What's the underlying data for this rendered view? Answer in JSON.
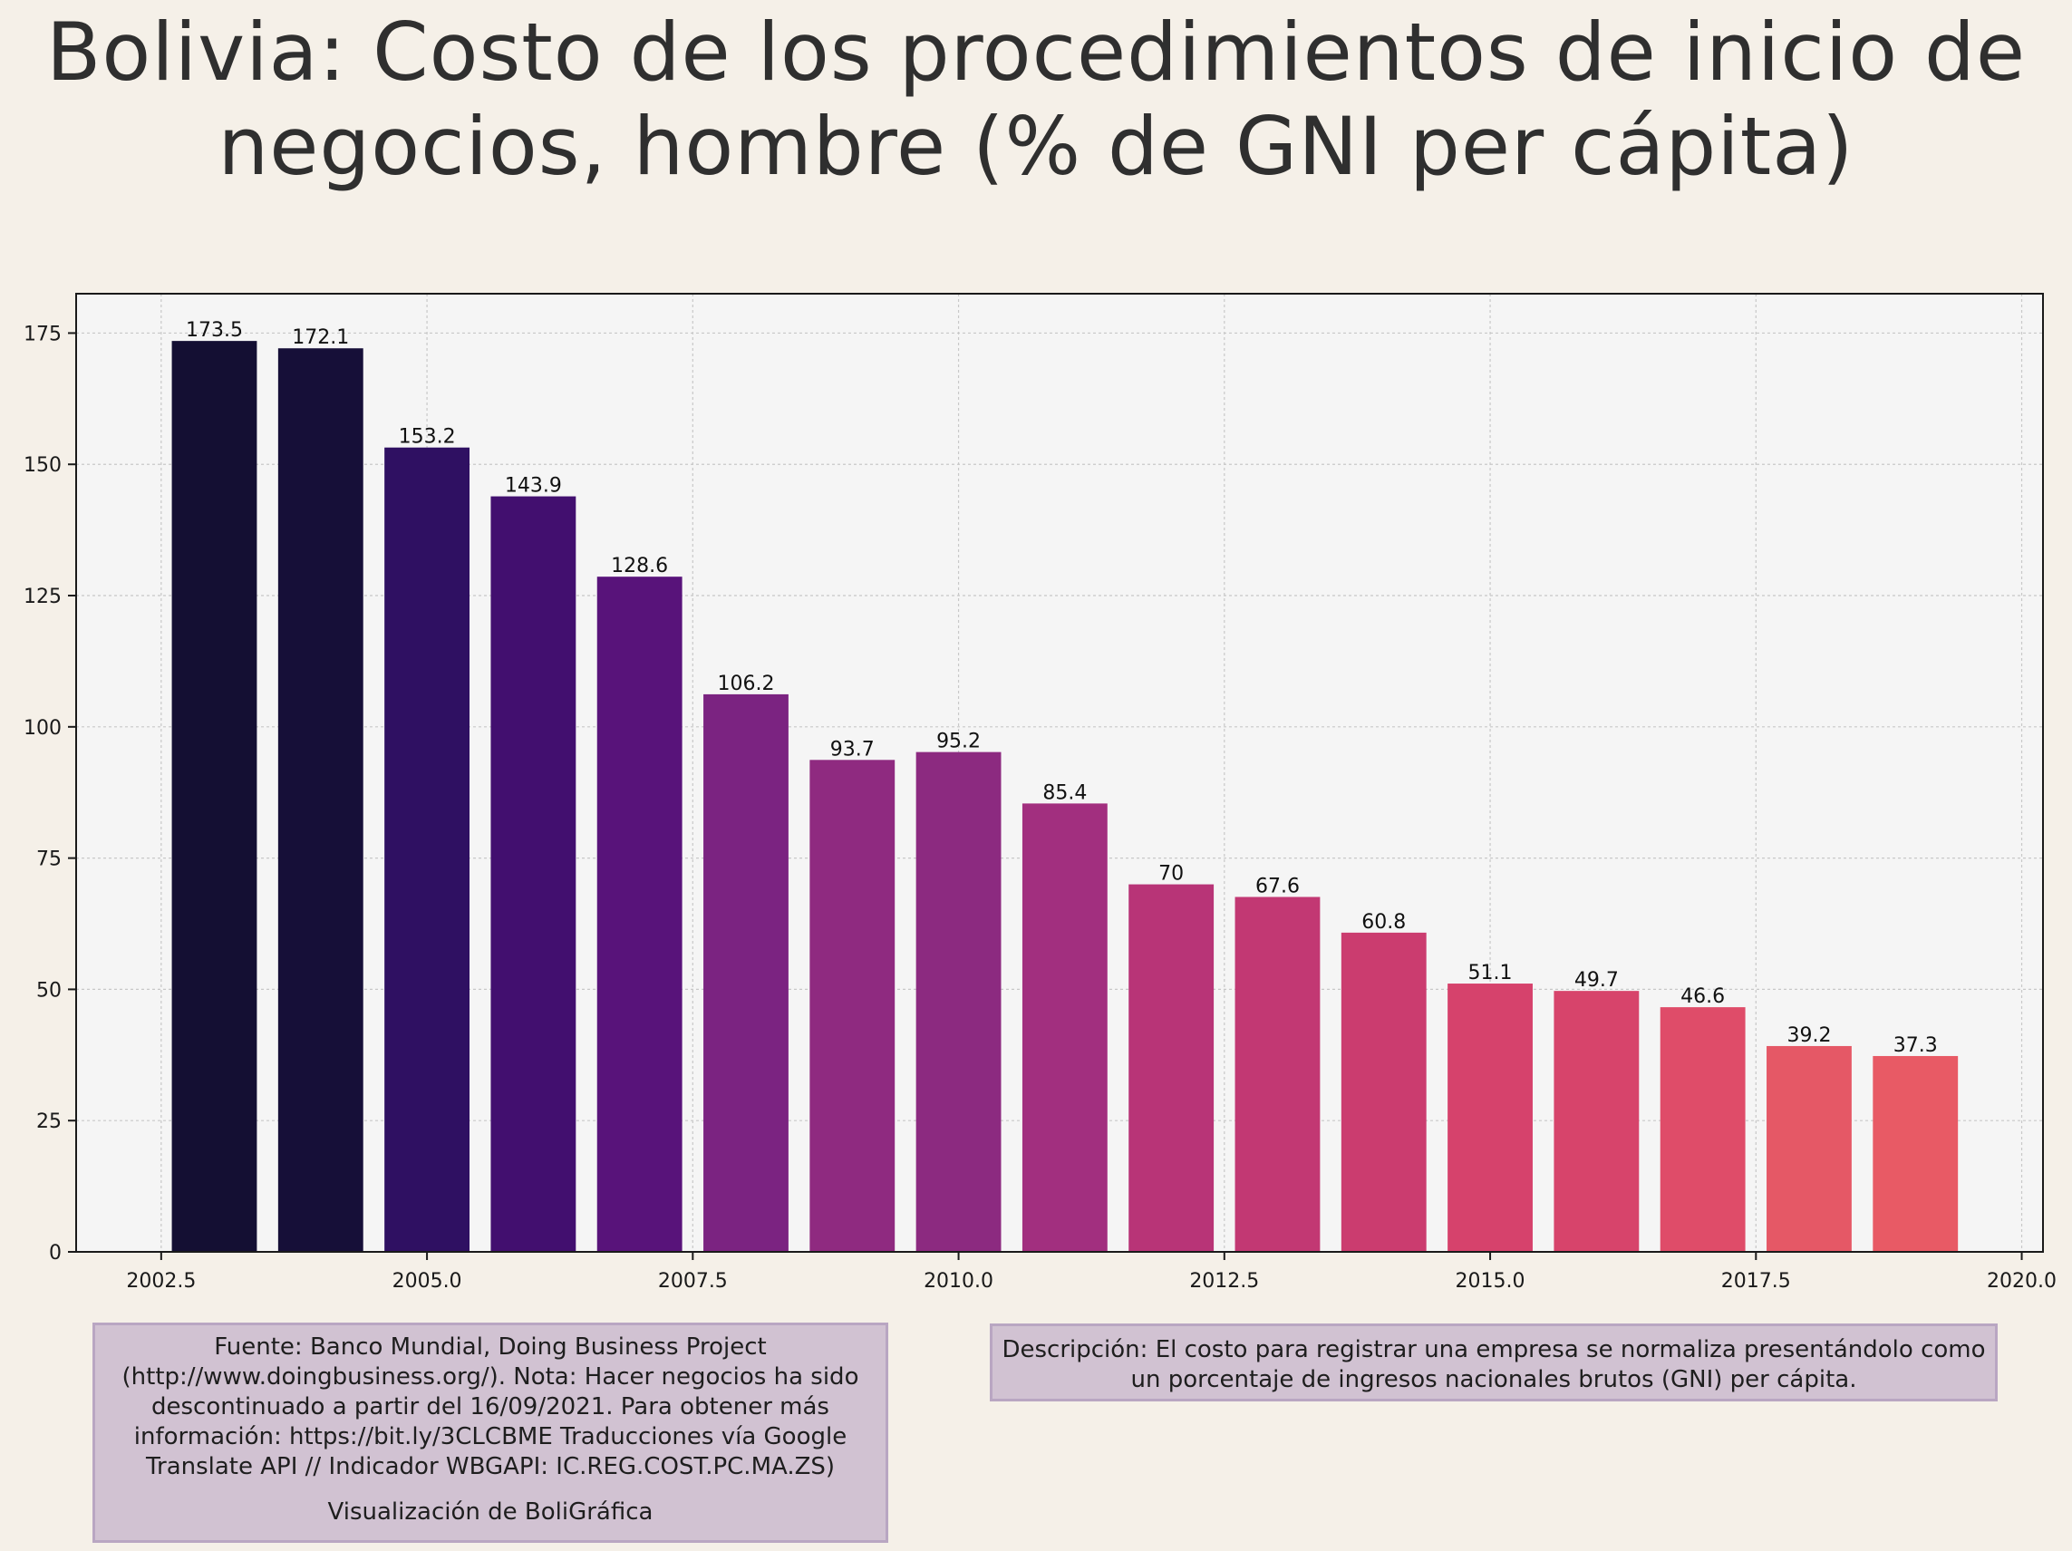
{
  "title": "Bolivia:  Costo de los procedimientos de inicio de\nnegocios, hombre (% de GNI per cápita)",
  "chart_data": {
    "type": "bar",
    "title": "Bolivia:  Costo de los procedimientos de inicio de negocios, hombre (% de GNI per cápita)",
    "xlabel": "",
    "ylabel": "",
    "x": [
      2003,
      2004,
      2005,
      2006,
      2007,
      2008,
      2009,
      2010,
      2011,
      2012,
      2013,
      2014,
      2015,
      2016,
      2017,
      2018,
      2019
    ],
    "values": [
      173.5,
      172.1,
      153.2,
      143.9,
      128.6,
      106.2,
      93.7,
      95.2,
      85.4,
      70,
      67.6,
      60.8,
      51.1,
      49.7,
      46.6,
      39.2,
      37.3
    ],
    "data_labels": [
      "173.5",
      "172.1",
      "153.2",
      "143.9",
      "128.6",
      "106.2",
      "93.7",
      "95.2",
      "85.4",
      "70",
      "67.6",
      "60.8",
      "51.1",
      "49.7",
      "46.6",
      "39.2",
      "37.3"
    ],
    "xlim": [
      2001.7,
      2020.2
    ],
    "ylim": [
      0,
      182.5
    ],
    "xticks": [
      2002.5,
      2005.0,
      2007.5,
      2010.0,
      2012.5,
      2015.0,
      2017.5,
      2020.0
    ],
    "xtick_labels": [
      "2002.5",
      "2005.0",
      "2007.5",
      "2010.0",
      "2012.5",
      "2015.0",
      "2017.5",
      "2020.0"
    ],
    "yticks": [
      0,
      25,
      50,
      75,
      100,
      125,
      150,
      175
    ],
    "ytick_labels": [
      "0",
      "25",
      "50",
      "75",
      "100",
      "125",
      "150",
      "175"
    ],
    "grid": true,
    "colors": [
      "#140f33",
      "#160f38",
      "#2f1062",
      "#420f6f",
      "#58137a",
      "#7b2381",
      "#8f2a80",
      "#8c2a80",
      "#a22f7f",
      "#b83477",
      "#c23873",
      "#cb3c6f",
      "#d6426c",
      "#d7446b",
      "#df4c69",
      "#e55866",
      "#e85a65"
    ],
    "plot_background": "#f5f5f5"
  },
  "notes": {
    "source": "Fuente: Banco Mundial, Doing Business Project (http://www.doingbusiness.org/). Nota: Hacer negocios ha sido descontinuado a partir del 16/09/2021. Para obtener más información: https://bit.ly/3CLCBME Traducciones vía Google Translate API // Indicador WBGAPI: IC.REG.COST.PC.MA.ZS)",
    "credit": "Visualización de BoliGráfica",
    "description": "Descripción: El costo para registrar una empresa se normaliza presentándolo como un porcentaje de ingresos nacionales brutos (GNI) per cápita."
  }
}
